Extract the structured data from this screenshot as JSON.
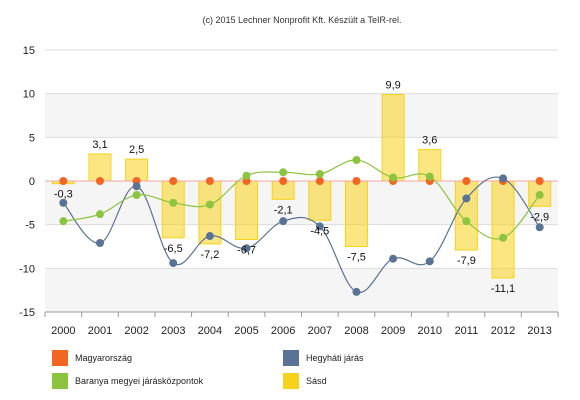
{
  "credit": "(c) 2015 Lechner Nonprofit Kft. Készült a TeIR-rel.",
  "chart_data": {
    "type": "bar",
    "title": "",
    "xlabel": "",
    "ylabel": "",
    "ylim": [
      -15,
      15
    ],
    "yticks": [
      15,
      10,
      5,
      0,
      -5,
      -10,
      -15
    ],
    "grid": true,
    "legend_position": "bottom",
    "categories": [
      "2000",
      "2001",
      "2002",
      "2003",
      "2004",
      "2005",
      "2006",
      "2007",
      "2008",
      "2009",
      "2010",
      "2011",
      "2012",
      "2013"
    ],
    "series": [
      {
        "name": "Sásd",
        "kind": "bar",
        "color": "#f7d21a",
        "values": [
          -0.3,
          3.1,
          2.5,
          -6.5,
          -7.2,
          -6.7,
          -2.1,
          -4.5,
          -7.5,
          9.9,
          3.6,
          -7.9,
          -11.1,
          -2.9
        ],
        "labels": [
          "-0,3",
          "3,1",
          "2,5",
          "-6,5",
          "-7,2",
          "-6,7",
          "-2,1",
          "-4,5",
          "-7,5",
          "9,9",
          "3,6",
          "-7,9",
          "-11,1",
          "-2,9"
        ]
      },
      {
        "name": "Magyarország",
        "kind": "line",
        "color": "#f26522",
        "values": [
          0,
          0,
          0,
          0,
          0,
          0,
          0,
          0,
          0,
          0,
          0,
          0,
          0,
          0
        ]
      },
      {
        "name": "Hegyháti járás",
        "kind": "line",
        "color": "#5a7394",
        "values": [
          -2.5,
          -7.1,
          -0.6,
          -9.4,
          -6.3,
          -7.7,
          -4.6,
          -5.2,
          -12.7,
          -8.9,
          -9.2,
          -2.0,
          0.3,
          -5.3
        ]
      },
      {
        "name": "Baranya megyei járásközpontok",
        "kind": "line",
        "color": "#8cc43f",
        "values": [
          -4.6,
          -3.8,
          -1.6,
          -2.5,
          -2.7,
          0.6,
          1.0,
          0.8,
          2.4,
          0.4,
          0.5,
          -4.6,
          -6.5,
          -1.6
        ]
      }
    ]
  },
  "legend": [
    {
      "label": "Magyarország",
      "color": "#f26522"
    },
    {
      "label": "Hegyháti járás",
      "color": "#5a7394"
    },
    {
      "label": "Baranya megyei járásközpontok",
      "color": "#8cc43f"
    },
    {
      "label": "Sásd",
      "color": "#f7d21a"
    }
  ]
}
